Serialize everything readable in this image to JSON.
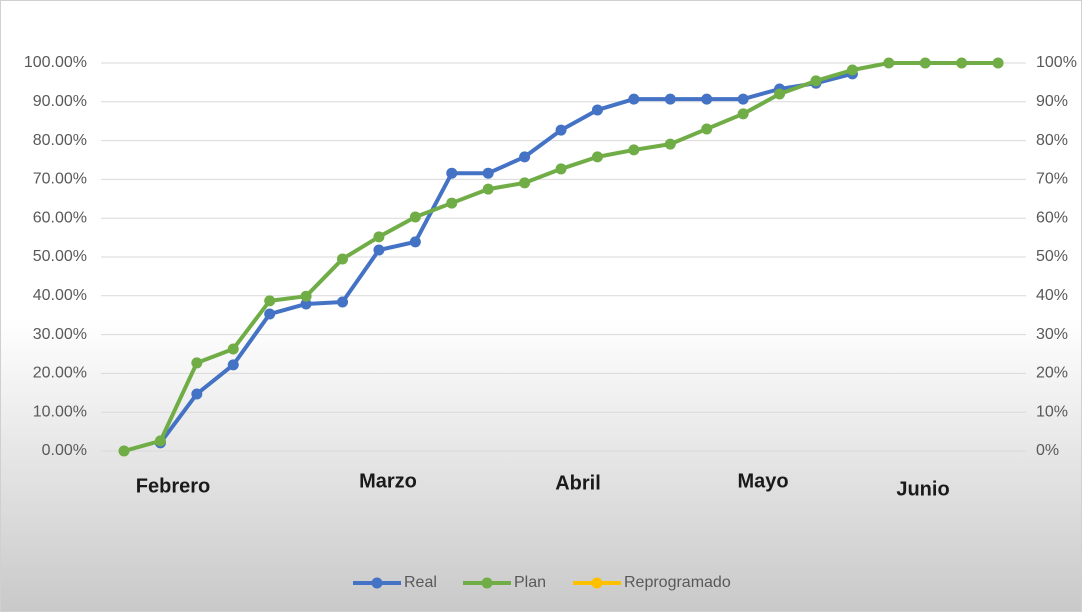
{
  "chart_data": {
    "type": "line",
    "ylim": [
      0,
      100
    ],
    "yticks": [
      {
        "value": 0,
        "label": "0.00%"
      },
      {
        "value": 10,
        "label": "10.00%"
      },
      {
        "value": 20,
        "label": "20.00%"
      },
      {
        "value": 30,
        "label": "30.00%"
      },
      {
        "value": 40,
        "label": "40.00%"
      },
      {
        "value": 50,
        "label": "50.00%"
      },
      {
        "value": 60,
        "label": "60.00%"
      },
      {
        "value": 70,
        "label": "70.00%"
      },
      {
        "value": 80,
        "label": "80.00%"
      },
      {
        "value": 90,
        "label": "90.00%"
      },
      {
        "value": 100,
        "label": "100.00%"
      }
    ],
    "y2lim": [
      0,
      100
    ],
    "y2ticks": [
      {
        "value": 0,
        "label": "0%"
      },
      {
        "value": 10,
        "label": "10%"
      },
      {
        "value": 20,
        "label": "20%"
      },
      {
        "value": 30,
        "label": "30%"
      },
      {
        "value": 40,
        "label": "40%"
      },
      {
        "value": 50,
        "label": "50%"
      },
      {
        "value": 60,
        "label": "60%"
      },
      {
        "value": 70,
        "label": "70%"
      },
      {
        "value": 80,
        "label": "80%"
      },
      {
        "value": 90,
        "label": "90%"
      },
      {
        "value": 100,
        "label": "100%"
      }
    ],
    "month_labels": [
      "Febrero",
      "Marzo",
      "Abril",
      "Mayo",
      "Junio"
    ],
    "grid": true,
    "legend": "bottom",
    "series": [
      {
        "name": "Real",
        "color": "#4472c4",
        "values": [
          null,
          2.1,
          14.7,
          22.2,
          35.3,
          37.9,
          38.4,
          51.8,
          53.9,
          71.6,
          71.6,
          75.8,
          82.7,
          87.9,
          90.7,
          90.7,
          90.7,
          90.7,
          93.3,
          94.8,
          97.2,
          null,
          null,
          null,
          null
        ]
      },
      {
        "name": "Plan",
        "color": "#70ad47",
        "values": [
          0,
          2.6,
          22.7,
          26.3,
          38.7,
          39.9,
          49.5,
          55.2,
          60.3,
          63.9,
          67.5,
          69.1,
          72.7,
          75.8,
          77.6,
          79.1,
          83.0,
          86.9,
          92.0,
          95.4,
          98.2,
          100,
          100,
          100,
          100
        ]
      },
      {
        "name": "Reprogramado",
        "color": "#ffc000",
        "values": [
          null,
          null,
          null,
          null,
          null,
          null,
          null,
          null,
          null,
          null,
          null,
          null,
          null,
          null,
          null,
          null,
          null,
          null,
          null,
          null,
          null,
          null,
          null,
          null,
          null
        ]
      }
    ]
  }
}
